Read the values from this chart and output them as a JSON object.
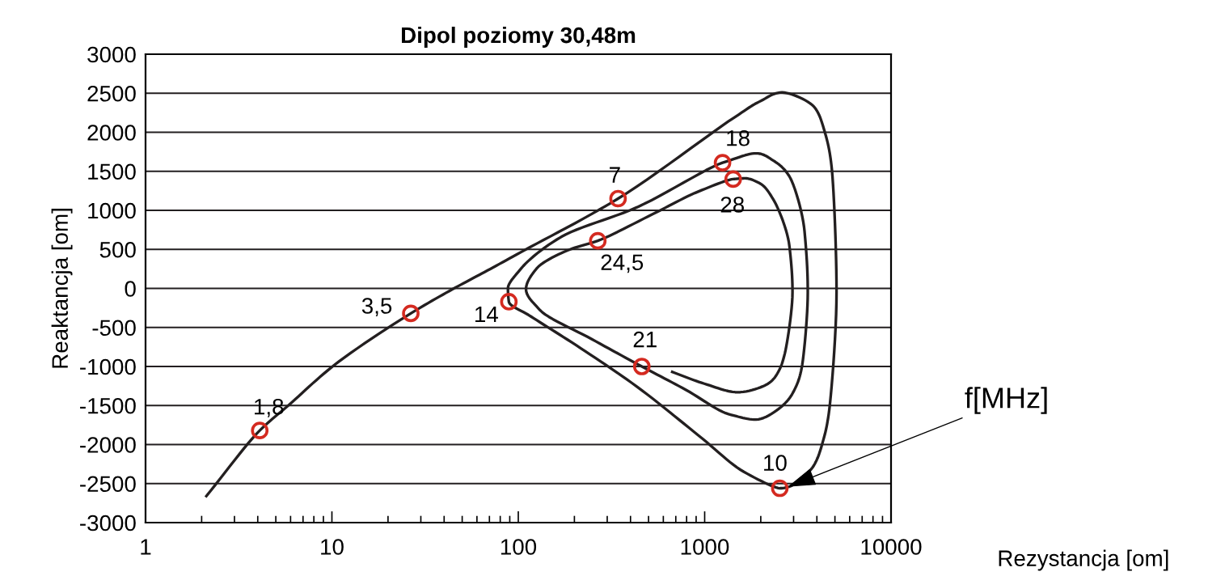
{
  "chart_data": {
    "type": "line",
    "title": "Dipol poziomy 30,48m",
    "xlabel": "Rezystancja [om]",
    "ylabel": "Reaktancja [om]",
    "log": "x",
    "grid": "y",
    "xlim": [
      1,
      10000
    ],
    "ylim": [
      -3000,
      3000
    ],
    "xticks": [
      1,
      10,
      100,
      1000,
      10000
    ],
    "yticks": [
      -3000,
      -2500,
      -2000,
      -1500,
      -1000,
      -500,
      0,
      500,
      1000,
      1500,
      2000,
      2500,
      3000
    ],
    "series": [
      {
        "color": "#231f20",
        "marker": "none",
        "line_style": "solid",
        "x": [
          2.12,
          4.1,
          5.9,
          10.2,
          26.5,
          46,
          66,
          110,
          343,
          1343,
          1958,
          2600,
          3850,
          4390,
          4820,
          5100,
          4630,
          4310,
          3850,
          2840,
          2530,
          1624,
          923,
          434,
          205,
          117,
          89,
          88,
          104,
          170,
          434,
          1247,
          1888,
          2360,
          2840,
          3435,
          3575,
          3315,
          3015,
          2650,
          1888,
          1343,
          794,
          460,
          248,
          131,
          110,
          126,
          190,
          267,
          525,
          923,
          1422,
          1653,
          1995,
          2360,
          2850,
          2960,
          2694,
          2495,
          2190,
          1505,
          995,
          670
        ],
        "values": [
          -2660,
          -1820,
          -1490,
          -990,
          -320,
          10,
          210,
          500,
          1150,
          2140,
          2390,
          2510,
          2330,
          2020,
          1510,
          -50,
          -1610,
          -1960,
          -2270,
          -2540,
          -2560,
          -2350,
          -1880,
          -1260,
          -730,
          -360,
          -170,
          0,
          260,
          660,
          1040,
          1610,
          1730,
          1630,
          1440,
          730,
          -50,
          -1020,
          -1310,
          -1490,
          -1680,
          -1610,
          -1300,
          -1000,
          -650,
          -280,
          -10,
          260,
          500,
          610,
          950,
          1240,
          1400,
          1410,
          1340,
          1120,
          540,
          -50,
          -830,
          -1060,
          -1220,
          -1330,
          -1220,
          -1070
        ]
      },
      {
        "type": "scatter",
        "color": "#d42a20",
        "marker": "circle",
        "x": [
          4.1,
          26.5,
          343,
          2530,
          89,
          1247,
          460,
          267,
          1422
        ],
        "values": [
          -1820,
          -320,
          1150,
          -2560,
          -170,
          1610,
          -1000,
          610,
          1400
        ]
      }
    ],
    "annotations": [
      {
        "text": "1,8",
        "x": 4.1,
        "y": -1820
      },
      {
        "text": "3,5",
        "x": 26.5,
        "y": -320
      },
      {
        "text": "7",
        "x": 343,
        "y": 1150
      },
      {
        "text": "10",
        "x": 2530,
        "y": -2560
      },
      {
        "text": "14",
        "x": 89,
        "y": -170
      },
      {
        "text": "18",
        "x": 1247,
        "y": 1610
      },
      {
        "text": "21",
        "x": 460,
        "y": -1000
      },
      {
        "text": "24,5",
        "x": 267,
        "y": 610
      },
      {
        "text": "28",
        "x": 1422,
        "y": 1400
      },
      {
        "text": "f[MHz]",
        "x": 2800,
        "y": -2540
      }
    ]
  }
}
